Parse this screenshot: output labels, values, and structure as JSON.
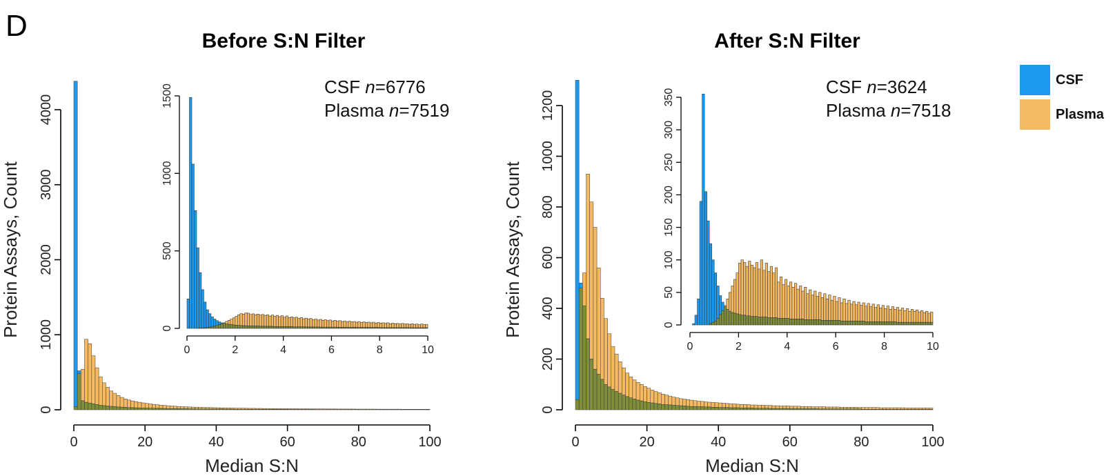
{
  "panel_letter": "D",
  "legend": [
    {
      "label": "CSF",
      "color": "#1a9bf0"
    },
    {
      "label": "Plasma",
      "color": "#f5b961"
    }
  ],
  "overlap_color": "#7e8e3a",
  "chart_data": [
    {
      "type": "bar",
      "title": "Before S:N Filter",
      "xlabel": "Median S:N",
      "ylabel": "Protein Assays, Count",
      "xlim": [
        0,
        100
      ],
      "ylim": [
        0,
        4000
      ],
      "xticks": [
        0,
        20,
        40,
        60,
        80,
        100
      ],
      "yticks": [
        0,
        1000,
        2000,
        3000,
        4000
      ],
      "bin_width": 1,
      "n_labels": [
        {
          "prefix": "CSF ",
          "italic": "n",
          "value": "=6776"
        },
        {
          "prefix": "Plasma ",
          "italic": "n",
          "value": "=7519"
        }
      ],
      "series": [
        {
          "name": "CSF",
          "values": [
            4380,
            520,
            120,
            100,
            90,
            80,
            70,
            62,
            55,
            50,
            45,
            42,
            38,
            35,
            32,
            30,
            28,
            26,
            25,
            24,
            22,
            21,
            20,
            19,
            18,
            17,
            16,
            15,
            15,
            14,
            13,
            13,
            12,
            12,
            11,
            11,
            10,
            10,
            10,
            9,
            9,
            9,
            8,
            8,
            8,
            7,
            7,
            7,
            7,
            6,
            6,
            6,
            6,
            6,
            5,
            5,
            5,
            5,
            5,
            5,
            4,
            4,
            4,
            4,
            4,
            4,
            4,
            4,
            3,
            3,
            3,
            3,
            3,
            3,
            3,
            3,
            3,
            3,
            3,
            3,
            2,
            2,
            2,
            2,
            2,
            2,
            2,
            2,
            2,
            2,
            2,
            2,
            2,
            2,
            2,
            2,
            2,
            2,
            2,
            2
          ]
        },
        {
          "name": "Plasma",
          "values": [
            40,
            480,
            540,
            940,
            880,
            720,
            560,
            440,
            360,
            300,
            250,
            220,
            190,
            165,
            145,
            130,
            118,
            108,
            100,
            92,
            85,
            78,
            72,
            67,
            62,
            58,
            54,
            50,
            47,
            44,
            42,
            40,
            38,
            36,
            34,
            33,
            31,
            30,
            29,
            28,
            27,
            26,
            25,
            24,
            23,
            22,
            21,
            21,
            20,
            19,
            19,
            18,
            18,
            17,
            17,
            16,
            16,
            15,
            15,
            15,
            14,
            14,
            14,
            13,
            13,
            13,
            12,
            12,
            12,
            12,
            11,
            11,
            11,
            11,
            10,
            10,
            10,
            10,
            10,
            9,
            9,
            9,
            9,
            9,
            9,
            8,
            8,
            8,
            8,
            8,
            8,
            8,
            7,
            7,
            7,
            7,
            7,
            7,
            7,
            7
          ]
        }
      ],
      "inset": {
        "xlim": [
          0,
          10
        ],
        "ylim": [
          0,
          1500
        ],
        "xticks": [
          0,
          2,
          4,
          6,
          8,
          10
        ],
        "yticks": [
          0,
          500,
          1000,
          1500
        ],
        "bin_width": 0.1,
        "series": [
          {
            "name": "CSF",
            "values": [
              190,
              1490,
              1060,
              760,
              520,
              360,
              250,
              170,
              120,
              95,
              75,
              60,
              50,
              42,
              36,
              32,
              28,
              26,
              24,
              22,
              20,
              19,
              18,
              17,
              17,
              16,
              16,
              15,
              15,
              15,
              14,
              14,
              14,
              13,
              13,
              13,
              12,
              12,
              12,
              12,
              11,
              11,
              11,
              11,
              10,
              10,
              10,
              10,
              10,
              9,
              9,
              9,
              9,
              9,
              9,
              8,
              8,
              8,
              8,
              8,
              8,
              8,
              7,
              7,
              7,
              7,
              7,
              7,
              7,
              7,
              6,
              6,
              6,
              6,
              6,
              6,
              6,
              6,
              6,
              6,
              5,
              5,
              5,
              5,
              5,
              5,
              5,
              5,
              5,
              5,
              5,
              5,
              5,
              4,
              4,
              4,
              4,
              4,
              4,
              4
            ]
          },
          {
            "name": "Plasma",
            "values": [
              0,
              0,
              0,
              0,
              1,
              2,
              3,
              4,
              6,
              8,
              10,
              14,
              18,
              24,
              30,
              36,
              45,
              52,
              60,
              68,
              78,
              88,
              95,
              92,
              100,
              98,
              90,
              94,
              88,
              92,
              86,
              90,
              84,
              88,
              80,
              86,
              78,
              84,
              76,
              82,
              72,
              80,
              70,
              74,
              68,
              72,
              64,
              70,
              62,
              66,
              60,
              64,
              56,
              60,
              54,
              58,
              52,
              56,
              50,
              54,
              48,
              52,
              46,
              50,
              44,
              48,
              42,
              46,
              42,
              44,
              40,
              44,
              38,
              42,
              38,
              40,
              36,
              40,
              34,
              38,
              34,
              36,
              32,
              36,
              30,
              34,
              30,
              32,
              28,
              32,
              28,
              30,
              26,
              30,
              26,
              28,
              24,
              28,
              24,
              26
            ]
          }
        ]
      }
    },
    {
      "type": "bar",
      "title": "After S:N Filter",
      "xlabel": "Median S:N",
      "ylabel": "Protein Assays, Count",
      "xlim": [
        0,
        100
      ],
      "ylim": [
        0,
        1200
      ],
      "xticks": [
        0,
        20,
        40,
        60,
        80,
        100
      ],
      "yticks": [
        0,
        200,
        400,
        600,
        800,
        1000,
        1200
      ],
      "bin_width": 1,
      "n_labels": [
        {
          "prefix": "CSF ",
          "italic": "n",
          "value": "=3624"
        },
        {
          "prefix": "Plasma ",
          "italic": "n",
          "value": "=7518"
        }
      ],
      "series": [
        {
          "name": "CSF",
          "values": [
            1300,
            500,
            410,
            280,
            200,
            160,
            140,
            120,
            100,
            90,
            80,
            72,
            65,
            58,
            52,
            47,
            42,
            38,
            35,
            32,
            29,
            27,
            25,
            23,
            21,
            20,
            19,
            18,
            17,
            16,
            15,
            14,
            13,
            13,
            12,
            12,
            11,
            11,
            10,
            10,
            9,
            9,
            9,
            8,
            8,
            8,
            7,
            7,
            7,
            7,
            6,
            6,
            6,
            6,
            5,
            5,
            5,
            5,
            5,
            5,
            4,
            4,
            4,
            4,
            4,
            4,
            4,
            4,
            3,
            3,
            3,
            3,
            3,
            3,
            3,
            3,
            3,
            3,
            3,
            3,
            2,
            2,
            2,
            2,
            2,
            2,
            2,
            2,
            2,
            2,
            2,
            2,
            2,
            2,
            2,
            2,
            2,
            2,
            2,
            2
          ]
        },
        {
          "name": "Plasma",
          "values": [
            40,
            480,
            540,
            930,
            820,
            720,
            560,
            440,
            360,
            300,
            250,
            220,
            190,
            165,
            145,
            130,
            118,
            108,
            100,
            92,
            85,
            78,
            72,
            67,
            62,
            58,
            54,
            50,
            47,
            44,
            42,
            40,
            38,
            36,
            34,
            33,
            31,
            30,
            29,
            28,
            27,
            26,
            25,
            24,
            23,
            22,
            21,
            21,
            20,
            19,
            19,
            18,
            18,
            17,
            17,
            16,
            16,
            15,
            15,
            15,
            14,
            14,
            14,
            13,
            13,
            13,
            12,
            12,
            12,
            12,
            11,
            11,
            11,
            11,
            10,
            10,
            10,
            10,
            10,
            9,
            9,
            9,
            9,
            9,
            9,
            8,
            8,
            8,
            8,
            8,
            8,
            8,
            7,
            7,
            7,
            7,
            7,
            7,
            7,
            7
          ]
        }
      ],
      "inset": {
        "xlim": [
          0,
          10
        ],
        "ylim": [
          0,
          350
        ],
        "xticks": [
          0,
          2,
          4,
          6,
          8,
          10
        ],
        "yticks": [
          0,
          50,
          100,
          150,
          200,
          250,
          300,
          350
        ],
        "bin_width": 0.1,
        "series": [
          {
            "name": "CSF",
            "values": [
              0,
              2,
              15,
              40,
              190,
              355,
              205,
              160,
              125,
              100,
              80,
              60,
              45,
              35,
              28,
              24,
              21,
              19,
              18,
              17,
              16,
              15,
              15,
              14,
              14,
              13,
              13,
              13,
              12,
              12,
              12,
              12,
              11,
              11,
              11,
              11,
              10,
              10,
              10,
              10,
              10,
              9,
              9,
              9,
              9,
              9,
              9,
              8,
              8,
              8,
              8,
              8,
              8,
              8,
              7,
              7,
              7,
              7,
              7,
              7,
              7,
              7,
              6,
              6,
              6,
              6,
              6,
              6,
              6,
              6,
              6,
              6,
              5,
              5,
              5,
              5,
              5,
              5,
              5,
              5,
              5,
              5,
              5,
              5,
              5,
              4,
              4,
              4,
              4,
              4,
              4,
              4,
              4,
              4,
              4,
              4,
              4,
              4,
              4,
              4
            ]
          },
          {
            "name": "Plasma",
            "values": [
              0,
              0,
              0,
              0,
              0,
              0,
              0,
              0,
              2,
              4,
              6,
              10,
              16,
              22,
              30,
              40,
              50,
              60,
              70,
              80,
              95,
              100,
              96,
              90,
              98,
              92,
              88,
              96,
              86,
              100,
              84,
              95,
              82,
              90,
              80,
              88,
              66,
              74,
              62,
              70,
              60,
              66,
              58,
              64,
              55,
              60,
              52,
              58,
              48,
              54,
              46,
              52,
              44,
              50,
              42,
              48,
              40,
              46,
              38,
              44,
              36,
              42,
              34,
              40,
              33,
              38,
              32,
              36,
              31,
              35,
              30,
              34,
              29,
              33,
              28,
              32,
              27,
              31,
              26,
              30,
              25,
              29,
              24,
              28,
              24,
              27,
              23,
              26,
              22,
              25,
              21,
              24,
              21,
              23,
              20,
              22,
              19,
              21,
              18,
              20
            ]
          }
        ]
      }
    }
  ]
}
